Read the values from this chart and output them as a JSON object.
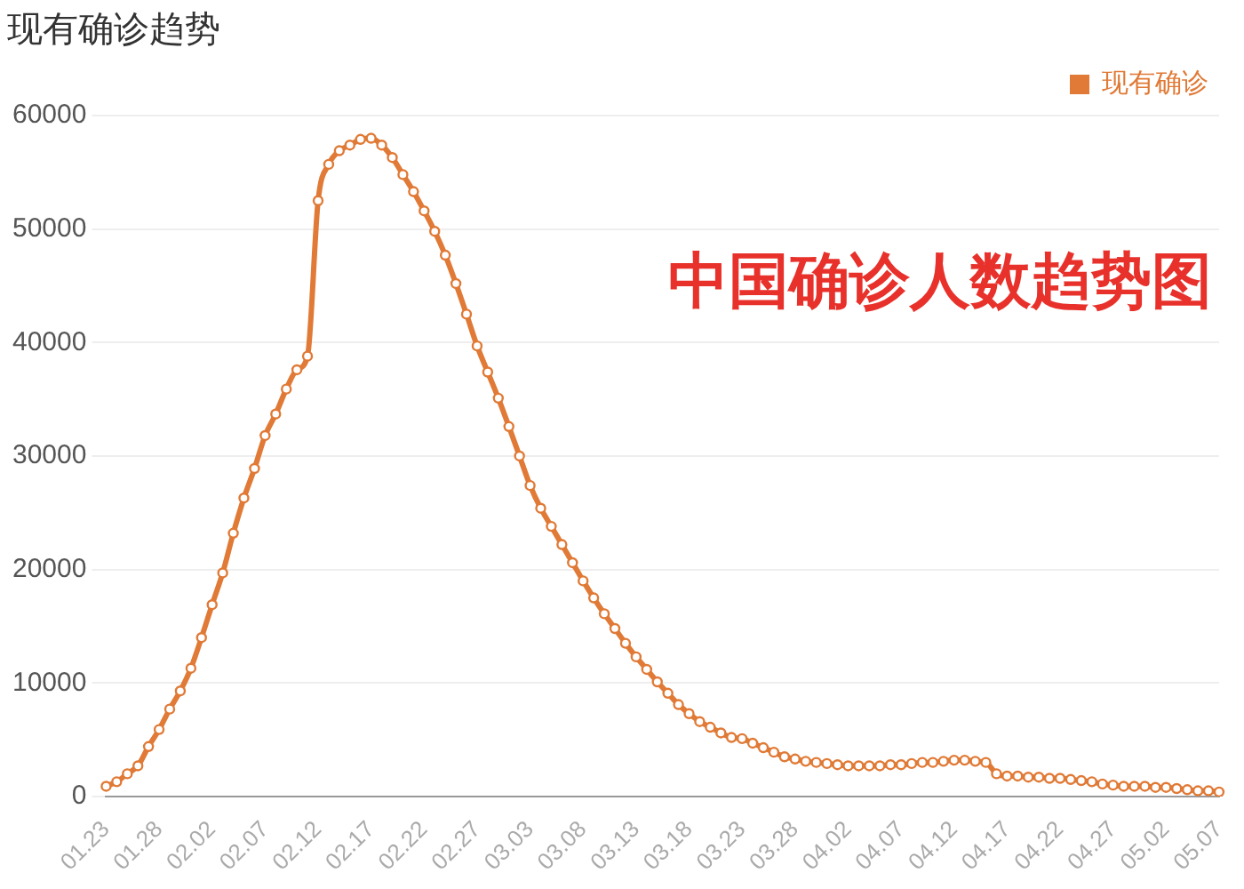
{
  "chart_data": {
    "type": "line",
    "title": "现有确诊趋势",
    "annotations": [
      "中国确诊人数趋势图"
    ],
    "categories": [
      "01.23",
      null,
      null,
      null,
      null,
      "01.28",
      null,
      null,
      null,
      null,
      "02.02",
      null,
      null,
      null,
      null,
      "02.07",
      null,
      null,
      null,
      null,
      "02.12",
      null,
      null,
      null,
      null,
      "02.17",
      null,
      null,
      null,
      null,
      "02.22",
      null,
      null,
      null,
      null,
      "02.27",
      null,
      null,
      null,
      null,
      "03.03",
      null,
      null,
      null,
      null,
      "03.08",
      null,
      null,
      null,
      null,
      "03.13",
      null,
      null,
      null,
      null,
      "03.18",
      null,
      null,
      null,
      null,
      "03.23",
      null,
      null,
      null,
      null,
      "03.28",
      null,
      null,
      null,
      null,
      "04.02",
      null,
      null,
      null,
      null,
      "04.07",
      null,
      null,
      null,
      null,
      "04.12",
      null,
      null,
      null,
      null,
      "04.17",
      null,
      null,
      null,
      null,
      "04.22",
      null,
      null,
      null,
      null,
      "04.27",
      null,
      null,
      null,
      null,
      "05.02",
      null,
      null,
      null,
      null,
      "05.07"
    ],
    "series": [
      {
        "name": "现有确诊",
        "color": "#e07a36",
        "values": [
          900,
          1300,
          2000,
          2700,
          4400,
          5900,
          7700,
          9300,
          11300,
          14000,
          16900,
          19700,
          23200,
          26300,
          28900,
          31800,
          33700,
          35900,
          37600,
          38800,
          52500,
          55700,
          56900,
          57400,
          57900,
          58000,
          57400,
          56300,
          54800,
          53300,
          51600,
          49800,
          47700,
          45200,
          42500,
          39700,
          37400,
          35100,
          32600,
          30000,
          27400,
          25400,
          23800,
          22200,
          20600,
          19000,
          17500,
          16100,
          14800,
          13500,
          12300,
          11200,
          10100,
          9100,
          8100,
          7300,
          6600,
          6100,
          5600,
          5200,
          5100,
          4700,
          4300,
          3900,
          3500,
          3300,
          3100,
          3000,
          2900,
          2800,
          2700,
          2700,
          2700,
          2700,
          2800,
          2800,
          2900,
          3000,
          3000,
          3100,
          3200,
          3200,
          3100,
          3000,
          2000,
          1800,
          1800,
          1700,
          1700,
          1600,
          1600,
          1500,
          1400,
          1300,
          1100,
          1000,
          900,
          900,
          900,
          800,
          800,
          700,
          600,
          500,
          500,
          400
        ]
      }
    ],
    "ylim": [
      0,
      60000
    ],
    "yticks": [
      0,
      10000,
      20000,
      30000,
      40000,
      50000,
      60000
    ],
    "grid": "y",
    "legend": "top right",
    "marker": "circle",
    "line_style": "solid"
  }
}
